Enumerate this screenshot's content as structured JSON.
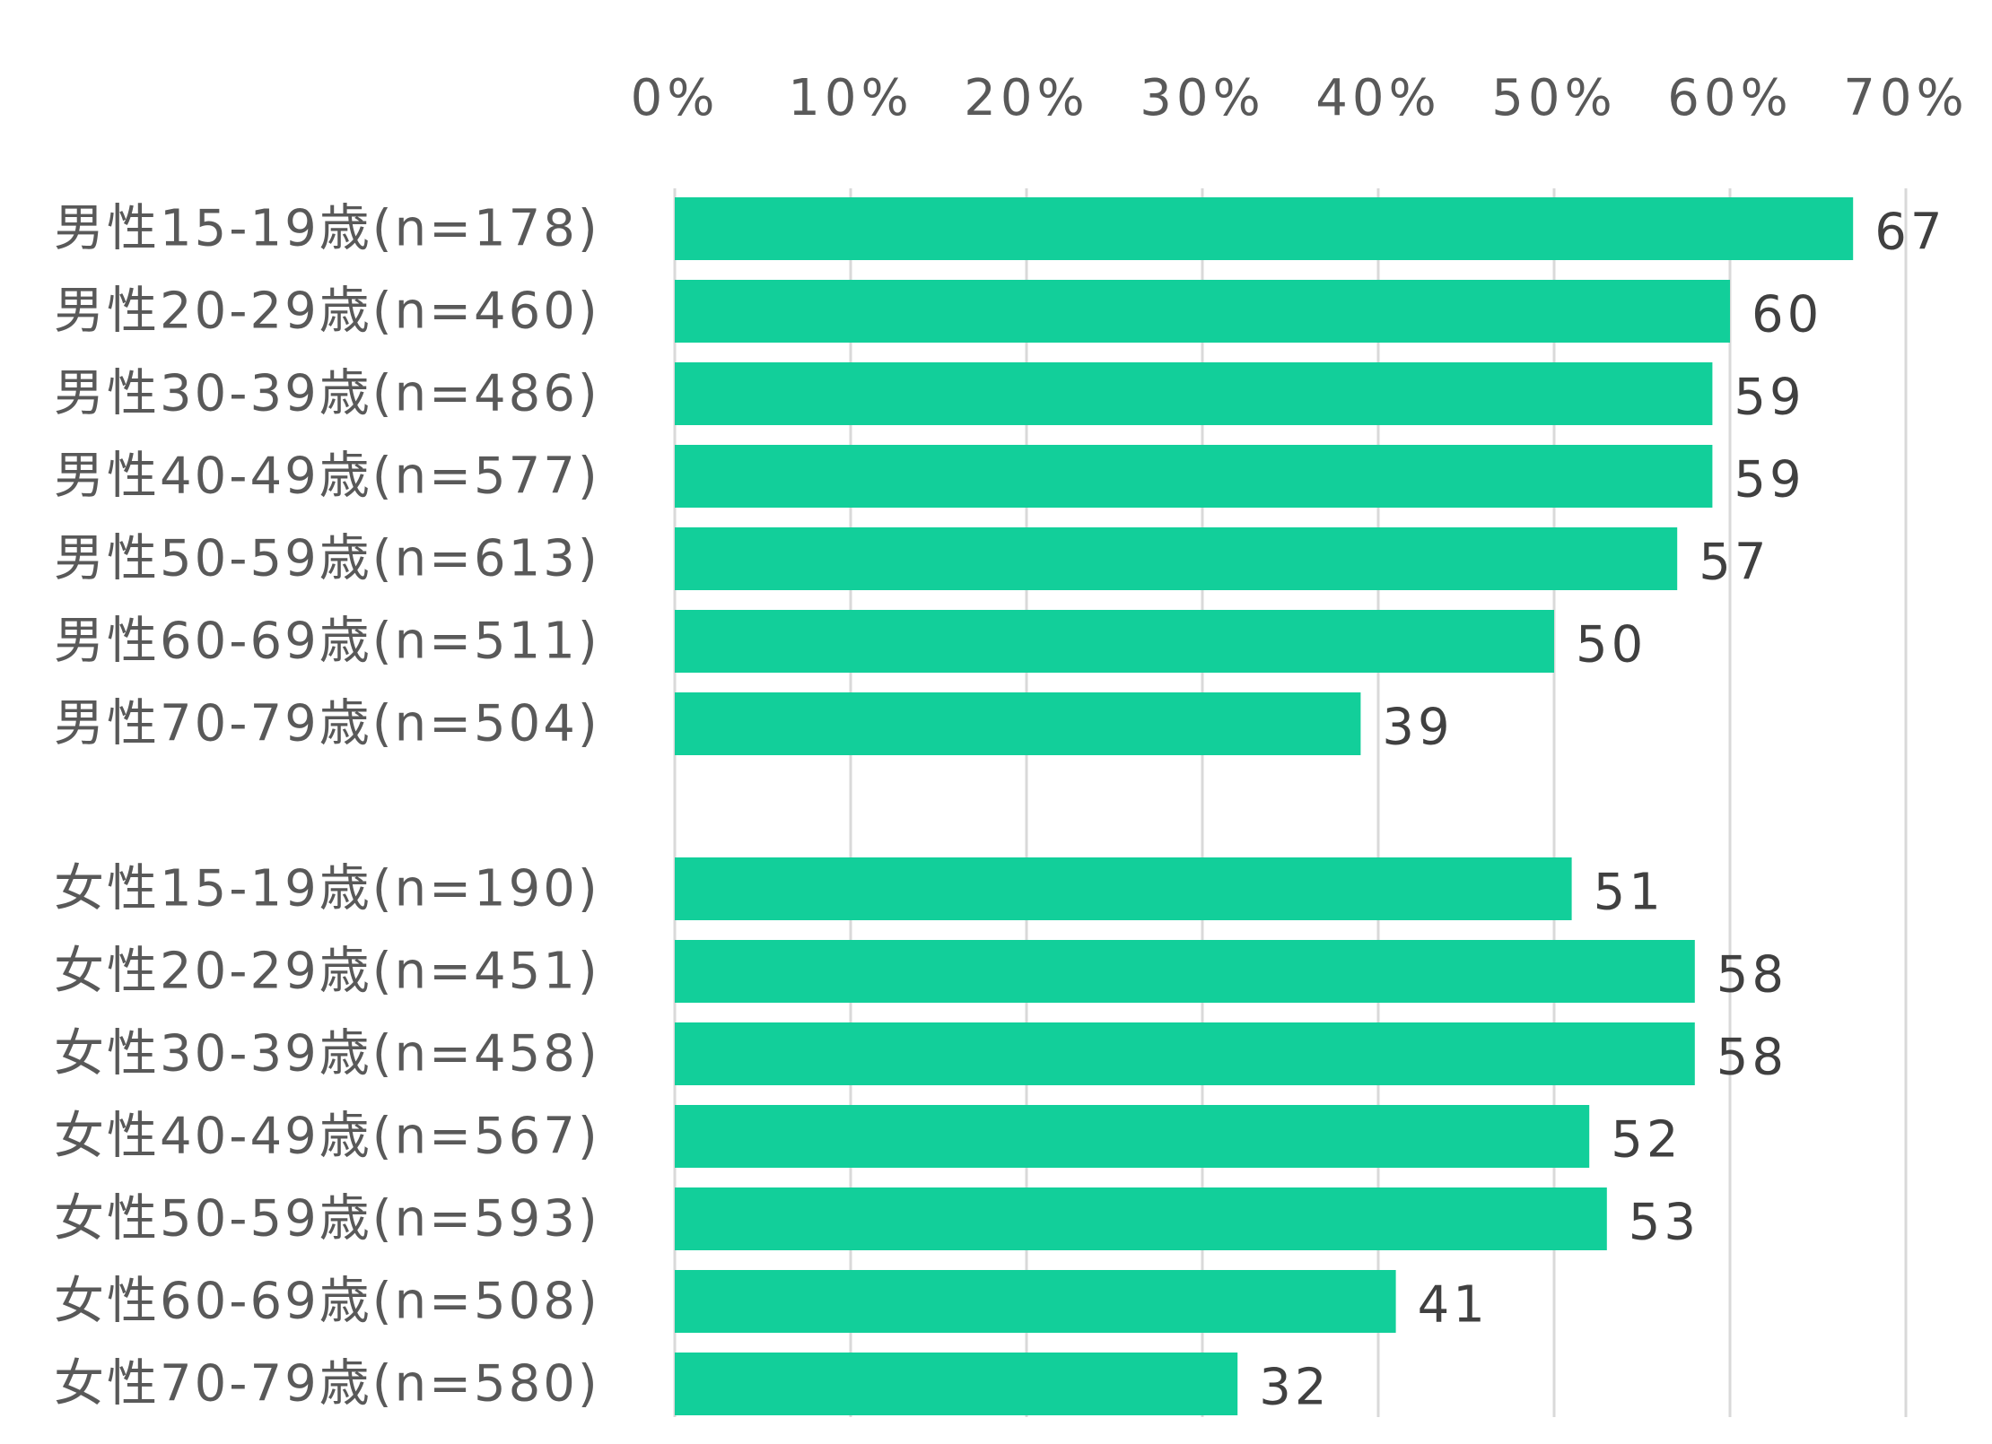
{
  "chart_data": {
    "type": "bar",
    "orientation": "horizontal",
    "title": "",
    "xlabel": "",
    "ylabel": "",
    "xlim": [
      0,
      70
    ],
    "x_ticks": [
      "0%",
      "10%",
      "20%",
      "30%",
      "40%",
      "50%",
      "60%",
      "70%"
    ],
    "x_axis_position": "top",
    "grid": true,
    "legend": "none",
    "bar_color": "#12cf9a",
    "groups": [
      {
        "categories": [
          "男性15-19歳(n=178)",
          "男性20-29歳(n=460)",
          "男性30-39歳(n=486)",
          "男性40-49歳(n=577)",
          "男性50-59歳(n=613)",
          "男性60-69歳(n=511)",
          "男性70-79歳(n=504)"
        ],
        "values": [
          67,
          60,
          59,
          59,
          57,
          50,
          39
        ]
      },
      {
        "categories": [
          "女性15-19歳(n=190)",
          "女性20-29歳(n=451)",
          "女性30-39歳(n=458)",
          "女性40-49歳(n=567)",
          "女性50-59歳(n=593)",
          "女性60-69歳(n=508)",
          "女性70-79歳(n=580)"
        ],
        "values": [
          51,
          58,
          58,
          52,
          53,
          41,
          32
        ]
      }
    ]
  }
}
